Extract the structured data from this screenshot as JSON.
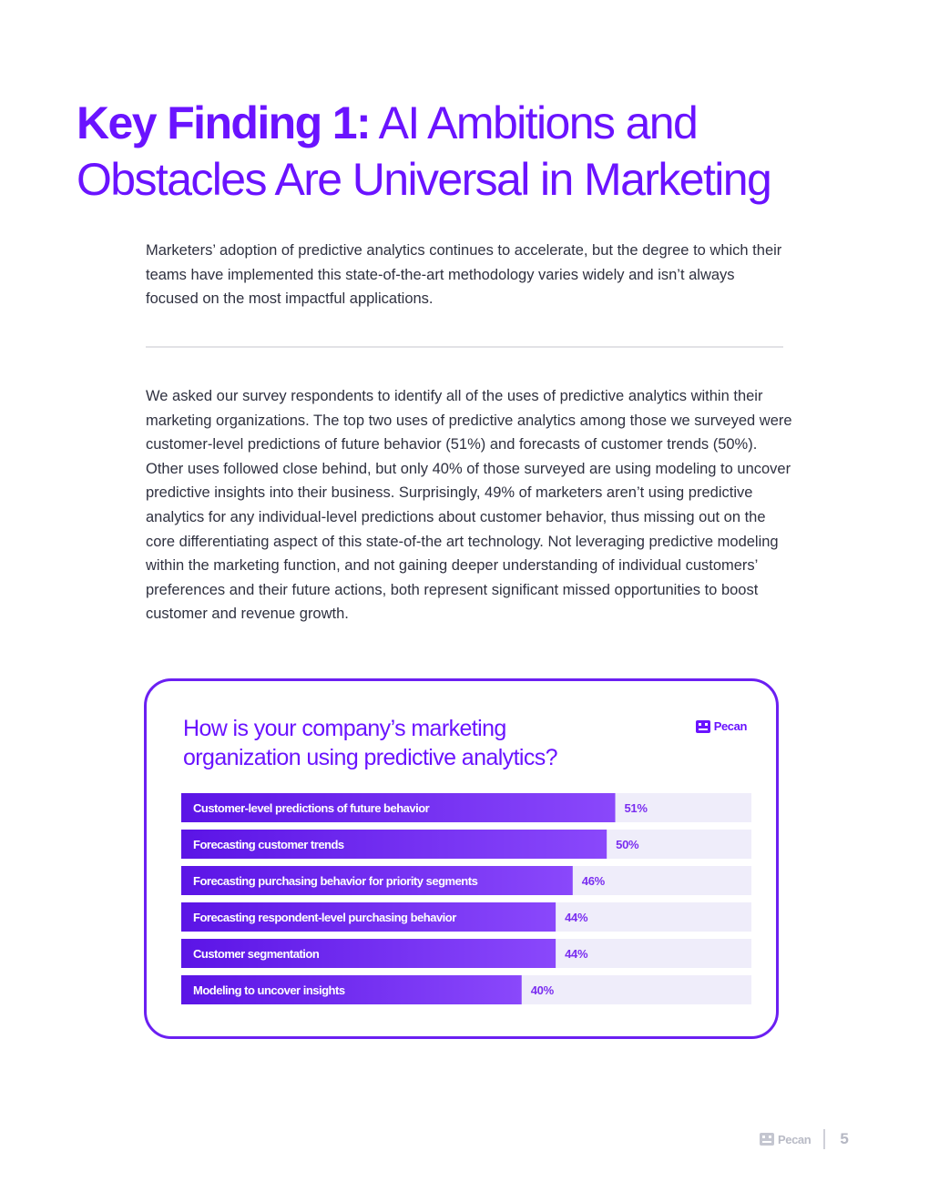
{
  "heading": {
    "bold": "Key Finding 1:",
    "rest": " AI Ambitions and Obstacles Are Universal in Marketing"
  },
  "intro": "Marketers’ adoption of predictive analytics continues to accelerate, but the degree to which their teams have implemented this state-of-the-art methodology varies widely and isn’t always focused on the most impactful applications.",
  "body": "We asked our survey respondents to identify all of the uses of predictive analytics within their marketing organizations. The top two uses of predictive analytics among those we surveyed were customer-level predictions of future behavior (51%) and forecasts of customer trends (50%). Other uses followed close behind, but only 40% of those surveyed are using modeling to uncover predictive insights into their business. Surprisingly, 49% of marketers aren’t using predictive analytics for any individual-level predictions about customer behavior, thus missing out on the core differentiating aspect of this state-of-the art technology. Not leveraging predictive modeling within the marketing function, and not gaining deeper understanding of individual customers’ preferences and their future actions, both represent significant missed opportunities to boost customer and revenue growth.",
  "brand": {
    "name": "Pecan",
    "icon": "pecan-logo-icon"
  },
  "chart_data": {
    "type": "bar",
    "orientation": "horizontal",
    "title": "How is your company’s marketing organization using predictive analytics?",
    "categories": [
      "Customer-level predictions of future behavior",
      "Forecasting customer trends",
      "Forecasting purchasing behavior for priority segments",
      "Forecasting respondent-level purchasing behavior",
      "Customer segmentation",
      "Modeling to uncover insights"
    ],
    "values": [
      51,
      50,
      46,
      44,
      44,
      40
    ],
    "value_labels": [
      "51%",
      "50%",
      "46%",
      "44%",
      "44%",
      "40%"
    ],
    "xlim": [
      0,
      67
    ],
    "unit": "%",
    "grid": false,
    "legend": "none",
    "colors": {
      "bar_start": "#5b14e6",
      "bar_end": "#8a48fb",
      "track": "#efedfa",
      "value_text": "#7a2ef0"
    }
  },
  "footer": {
    "brand": "Pecan",
    "page_number": "5"
  }
}
